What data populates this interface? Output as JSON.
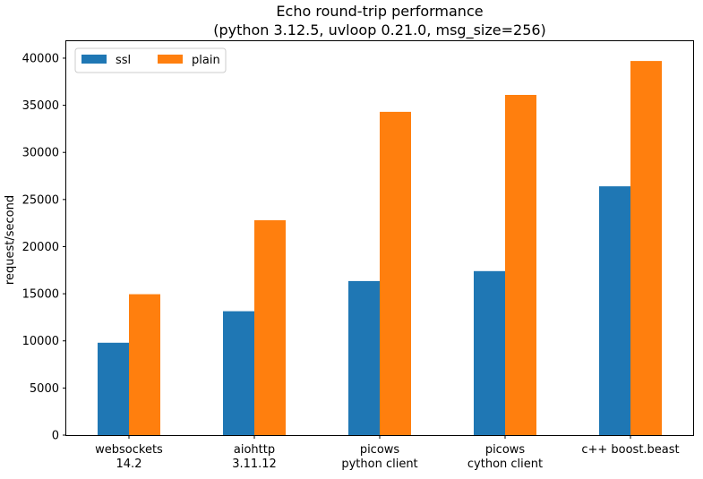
{
  "chart_data": {
    "type": "bar",
    "title": "Echo round-trip performance",
    "subtitle": "(python 3.12.5, uvloop 0.21.0, msg_size=256)",
    "xlabel": "",
    "ylabel": "request/second",
    "categories": [
      [
        "websockets",
        "14.2"
      ],
      [
        "aiohttp",
        "3.11.12"
      ],
      [
        "picows",
        "python client"
      ],
      [
        "picows",
        "cython client"
      ],
      [
        "c++ boost.beast"
      ]
    ],
    "series": [
      {
        "name": "ssl",
        "color": "#1f77b4",
        "values": [
          9800,
          13150,
          16350,
          17400,
          26400
        ]
      },
      {
        "name": "plain",
        "color": "#ff7f0e",
        "values": [
          14950,
          22800,
          34300,
          36100,
          39700
        ]
      }
    ],
    "ylim": [
      0,
      41800
    ],
    "yticks": [
      0,
      5000,
      10000,
      15000,
      20000,
      25000,
      30000,
      35000,
      40000
    ],
    "grid": false,
    "legend_position": "top-left"
  }
}
